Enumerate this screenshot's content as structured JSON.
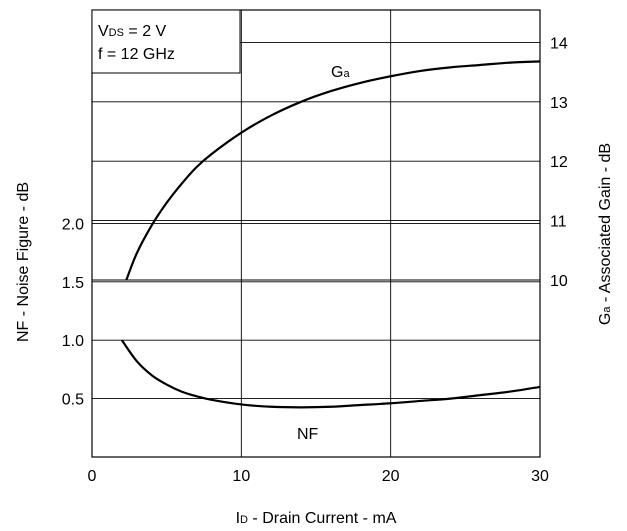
{
  "chart_data": {
    "type": "line",
    "grid": true,
    "x_axis": {
      "label_main": "I",
      "label_sub": "D",
      "label_rest": " - Drain Current - mA",
      "range": [
        0,
        30
      ],
      "ticks": [
        0,
        10,
        20,
        30
      ],
      "tick_labels": [
        "0",
        "10",
        "20",
        "30"
      ]
    },
    "y_left": {
      "label": "NF - Noise Figure - dB",
      "ticks": [
        0.5,
        1.0,
        1.5,
        2.0
      ],
      "tick_labels": [
        "0.5",
        "1.0",
        "1.5",
        "2.0"
      ]
    },
    "y_right": {
      "label_main": "G",
      "label_sub": "a",
      "label_rest": " - Associated Gain - dB",
      "ticks": [
        10,
        11,
        12,
        13,
        14
      ],
      "tick_labels": [
        "10",
        "11",
        "12",
        "13",
        "14"
      ]
    },
    "conditions": {
      "line1_main": "V",
      "line1_sub": "DS",
      "line1_rest": " = 2 V",
      "line2": "f = 12 GHz"
    },
    "series": [
      {
        "name": "NF",
        "axis": "left",
        "label_main": "NF",
        "label_sub": "",
        "x": [
          2.0,
          3,
          4,
          5,
          6,
          7,
          8,
          10,
          12,
          14,
          16,
          18,
          20,
          22,
          24,
          26,
          28,
          30
        ],
        "y": [
          1.0,
          0.82,
          0.7,
          0.62,
          0.56,
          0.52,
          0.49,
          0.45,
          0.43,
          0.425,
          0.43,
          0.445,
          0.46,
          0.48,
          0.5,
          0.53,
          0.56,
          0.6
        ]
      },
      {
        "name": "Ga",
        "axis": "right",
        "label_main": "G",
        "label_sub": "a",
        "x": [
          2.3,
          3,
          4,
          5,
          6,
          7,
          8,
          10,
          12,
          14,
          16,
          18,
          20,
          22,
          24,
          26,
          28,
          30
        ],
        "y": [
          10.0,
          10.45,
          10.92,
          11.3,
          11.62,
          11.9,
          12.12,
          12.48,
          12.77,
          13.0,
          13.18,
          13.32,
          13.43,
          13.52,
          13.58,
          13.62,
          13.66,
          13.68
        ]
      }
    ]
  }
}
